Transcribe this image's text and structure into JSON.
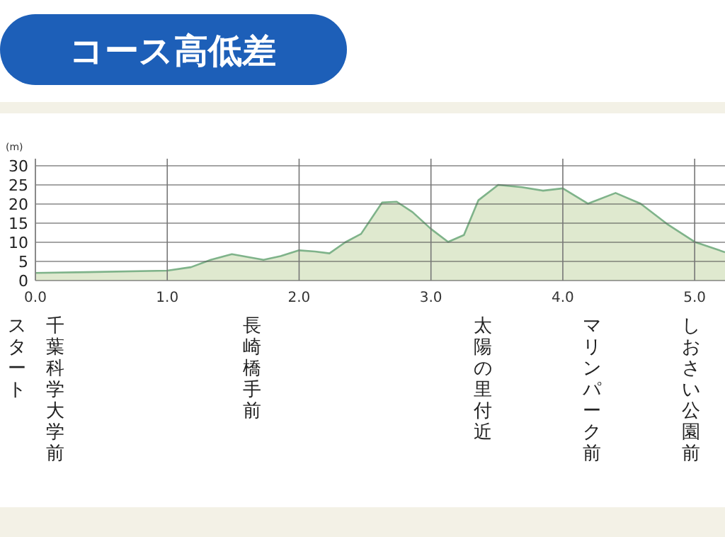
{
  "chart_data": {
    "type": "area",
    "title": "コース高低差",
    "ylabel": "(m)",
    "x": [
      0,
      0.39,
      1.0,
      1.18,
      1.33,
      1.49,
      1.73,
      1.86,
      2.0,
      2.12,
      2.23,
      2.35,
      2.47,
      2.63,
      2.74,
      2.86,
      3.0,
      3.13,
      3.25,
      3.36,
      3.51,
      3.69,
      3.85,
      4.0,
      4.19,
      4.4,
      4.59,
      4.79,
      5.0,
      5.23
    ],
    "series": [
      {
        "color": "#7fb38a",
        "values": [
          2,
          2.2,
          2.6,
          3.5,
          5.4,
          6.9,
          5.4,
          6.4,
          7.9,
          7.6,
          7.1,
          10,
          12.2,
          20.4,
          20.6,
          17.9,
          13.5,
          10.1,
          11.9,
          21,
          25,
          24.4,
          23.5,
          24.1,
          20.1,
          22.9,
          20.1,
          14.8,
          10.1,
          7.4
        ]
      }
    ],
    "xlim": [
      0,
      5.23
    ],
    "xticks": [
      {
        "value": 0,
        "label": "0.0"
      },
      {
        "value": 1,
        "label": "1.0"
      },
      {
        "value": 2,
        "label": "2.0"
      },
      {
        "value": 3,
        "label": "3.0"
      },
      {
        "value": 4,
        "label": "4.0"
      },
      {
        "value": 5,
        "label": "5.0"
      }
    ],
    "ylim": [
      0,
      30
    ],
    "yticks": [
      0,
      5,
      10,
      15,
      20,
      25,
      30
    ],
    "grid": true,
    "annotations": [
      "スタート",
      "千葉科学大学前",
      "長崎橋手前",
      "太陽の里付近",
      "マリンパーク前",
      "しおさい公園前"
    ]
  }
}
